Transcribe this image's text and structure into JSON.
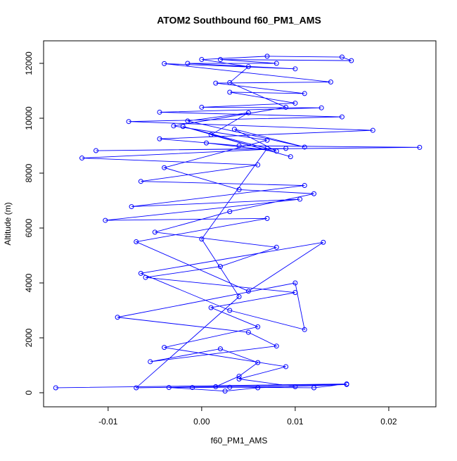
{
  "chart_data": {
    "type": "line",
    "title": "ATOM2 Southbound f60_PM1_AMS",
    "x_label": "f60_PM1_AMS",
    "y_label": "Altitude (m)",
    "x": [
      -0.0156,
      0.0155,
      0.012,
      0.003,
      -0.001,
      0.0015,
      0.004,
      0.006,
      0.002,
      -0.0055,
      0.008,
      0.005,
      -0.009,
      0.01,
      0.011,
      0.003,
      -0.0065,
      0.013,
      0.005,
      -0.007,
      0.007,
      -0.0103,
      0.0105,
      -0.0075,
      0.011,
      -0.0065,
      0.006,
      -0.0128,
      0.009,
      -0.0113,
      0.0233,
      0.004,
      -0.0045,
      0.0183,
      -0.0078,
      0.015,
      -0.0045,
      0.0128,
      0.0,
      0.01,
      0.003,
      0.011,
      0.0015,
      0.0138,
      -0.004,
      0.01,
      -0.0015,
      0.008,
      0.002,
      0.016,
      0.015,
      0.007,
      0.0,
      0.005,
      0.003,
      0.009,
      -0.003,
      0.007,
      -0.004,
      0.004,
      0.012,
      0.003,
      -0.005,
      0.008,
      0.002,
      -0.006,
      0.01,
      0.001,
      0.006,
      -0.004,
      0.009,
      0.004,
      0.01,
      -0.0035,
      0.0025,
      0.006,
      0.0155,
      -0.007,
      0.004,
      0.0,
      0.007,
      -0.002,
      0.0095,
      0.001,
      0.005,
      -0.0015,
      0.011,
      0.0035,
      0.008,
      0.0005
    ],
    "series": [
      {
        "color": "#0000ff",
        "values": [
          180,
          320,
          180,
          200,
          190,
          220,
          600,
          1100,
          1600,
          1130,
          1700,
          2200,
          2750,
          4000,
          2300,
          3000,
          4350,
          5480,
          3700,
          5500,
          6350,
          6280,
          7050,
          6780,
          7550,
          7700,
          8300,
          8550,
          8900,
          8820,
          8940,
          9000,
          9250,
          9560,
          9880,
          10050,
          10220,
          10380,
          10400,
          10550,
          10950,
          10900,
          11280,
          11320,
          11990,
          11800,
          12000,
          12000,
          12140,
          12100,
          12230,
          12260,
          12140,
          11880,
          11300,
          10400,
          9720,
          9200,
          8200,
          7400,
          7250,
          6600,
          5850,
          5300,
          4600,
          4200,
          3650,
          3100,
          2400,
          1650,
          950,
          500,
          220,
          190,
          60,
          180,
          300,
          180,
          3500,
          5600,
          8900,
          9700,
          8600,
          9400,
          10200,
          9900,
          8950,
          9600,
          8800,
          9100
        ]
      }
    ],
    "xlim": [
      -0.0169,
      0.02504
    ],
    "ylim": [
      -513,
      12821
    ],
    "xticks": [
      -0.01,
      {
        "value": 0,
        "label": "0.00"
      },
      0.01,
      0.02
    ],
    "yticks": [
      0,
      2000,
      4000,
      6000,
      8000,
      10000,
      12000
    ]
  }
}
